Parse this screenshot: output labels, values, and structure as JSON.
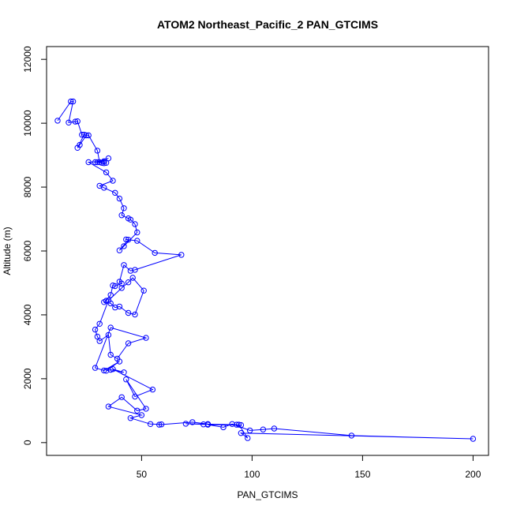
{
  "chart_data": {
    "type": "line",
    "title": "ATOM2 Northeast_Pacific_2 PAN_GTCIMS",
    "xlabel": "PAN_GTCIMS",
    "ylabel": "Altitude (m)",
    "xlim": [
      7,
      207
    ],
    "ylim": [
      -400,
      12400
    ],
    "xticks": [
      50,
      100,
      150,
      200
    ],
    "yticks": [
      0,
      2000,
      4000,
      6000,
      8000,
      10000,
      12000
    ],
    "grid": false,
    "legend": "none",
    "color": "#0000ff",
    "markers": "open-circle",
    "series": [
      {
        "x": [
          12,
          18,
          19,
          17,
          20,
          21,
          23,
          25,
          22,
          21,
          24,
          26,
          30,
          31,
          32,
          34,
          33,
          29,
          35,
          30,
          33,
          26,
          34,
          37,
          31,
          33,
          38,
          40,
          42,
          41,
          44,
          45,
          47,
          48,
          42,
          40,
          44,
          43,
          48,
          56,
          68,
          47,
          45,
          42,
          40,
          41,
          38,
          37,
          36,
          34,
          33,
          36,
          38,
          40,
          44,
          47,
          51,
          46,
          44,
          41,
          35,
          31,
          29,
          30,
          31,
          35,
          36,
          39,
          44,
          52,
          36,
          29,
          33,
          40,
          34,
          36,
          42,
          37,
          55,
          47,
          43,
          52,
          48,
          41,
          35,
          50,
          45,
          54,
          59,
          58,
          73,
          80,
          78,
          70,
          93,
          95,
          80,
          87,
          91,
          99,
          105,
          110,
          145,
          200,
          95,
          98,
          94
        ]
      }
    ]
  }
}
